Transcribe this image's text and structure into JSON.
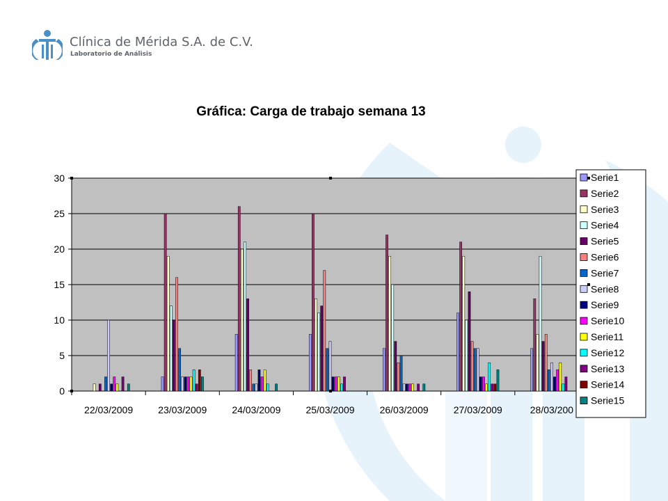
{
  "brand": {
    "name": "Clínica de Mérida S.A. de C.V.",
    "subtitle": "Laboratorio de Análisis"
  },
  "colors": {
    "brand": "#4a8fc6",
    "watermark": "#e6f3fb",
    "plot_bg": "#c0c0c0"
  },
  "chart_data": {
    "type": "bar",
    "title": "Gráfica: Carga de trabajo semana 13",
    "xlabel": "",
    "ylabel": "",
    "ylim": [
      0,
      30
    ],
    "yticks": [
      0,
      5,
      10,
      15,
      20,
      25,
      30
    ],
    "grid": true,
    "legend_position": "right",
    "categories": [
      "22/03/2009",
      "23/03/2009",
      "24/03/2009",
      "25/03/2009",
      "26/03/2009",
      "27/03/2009",
      "28/03/200"
    ],
    "series": [
      {
        "name": "Serie1",
        "color": "#9999ff",
        "values": [
          0,
          2,
          8,
          8,
          6,
          11,
          6
        ]
      },
      {
        "name": "Serie2",
        "color": "#993366",
        "values": [
          0,
          25,
          26,
          25,
          22,
          21,
          13
        ]
      },
      {
        "name": "Serie3",
        "color": "#ffffcc",
        "values": [
          1,
          19,
          20,
          13,
          19,
          19,
          8
        ]
      },
      {
        "name": "Serie4",
        "color": "#ccffff",
        "values": [
          0,
          12,
          21,
          11,
          15,
          10,
          19
        ]
      },
      {
        "name": "Serie5",
        "color": "#660066",
        "values": [
          1,
          10,
          13,
          12,
          7,
          14,
          7
        ]
      },
      {
        "name": "Serie6",
        "color": "#ff8080",
        "values": [
          0,
          16,
          3,
          17,
          4,
          7,
          8
        ]
      },
      {
        "name": "Serie7",
        "color": "#0066cc",
        "values": [
          2,
          6,
          1,
          6,
          5,
          6,
          3
        ]
      },
      {
        "name": "Serie8",
        "color": "#ccccff",
        "values": [
          10,
          2,
          1,
          7,
          1,
          6,
          4
        ]
      },
      {
        "name": "Serie9",
        "color": "#000080",
        "values": [
          1,
          2,
          3,
          2,
          1,
          2,
          2
        ]
      },
      {
        "name": "Serie10",
        "color": "#ff00ff",
        "values": [
          2,
          2,
          2,
          2,
          1,
          2,
          3
        ]
      },
      {
        "name": "Serie11",
        "color": "#ffff00",
        "values": [
          1,
          2,
          3,
          2,
          1,
          1,
          4
        ]
      },
      {
        "name": "Serie12",
        "color": "#00ffff",
        "values": [
          0,
          3,
          1,
          1,
          0,
          4,
          1
        ]
      },
      {
        "name": "Serie13",
        "color": "#800080",
        "values": [
          2,
          1,
          0,
          2,
          1,
          1,
          2
        ]
      },
      {
        "name": "Serie14",
        "color": "#800000",
        "values": [
          0,
          3,
          0,
          0,
          0,
          1,
          0
        ]
      },
      {
        "name": "Serie15",
        "color": "#008080",
        "values": [
          1,
          2,
          1,
          0,
          1,
          3,
          0
        ]
      }
    ]
  }
}
